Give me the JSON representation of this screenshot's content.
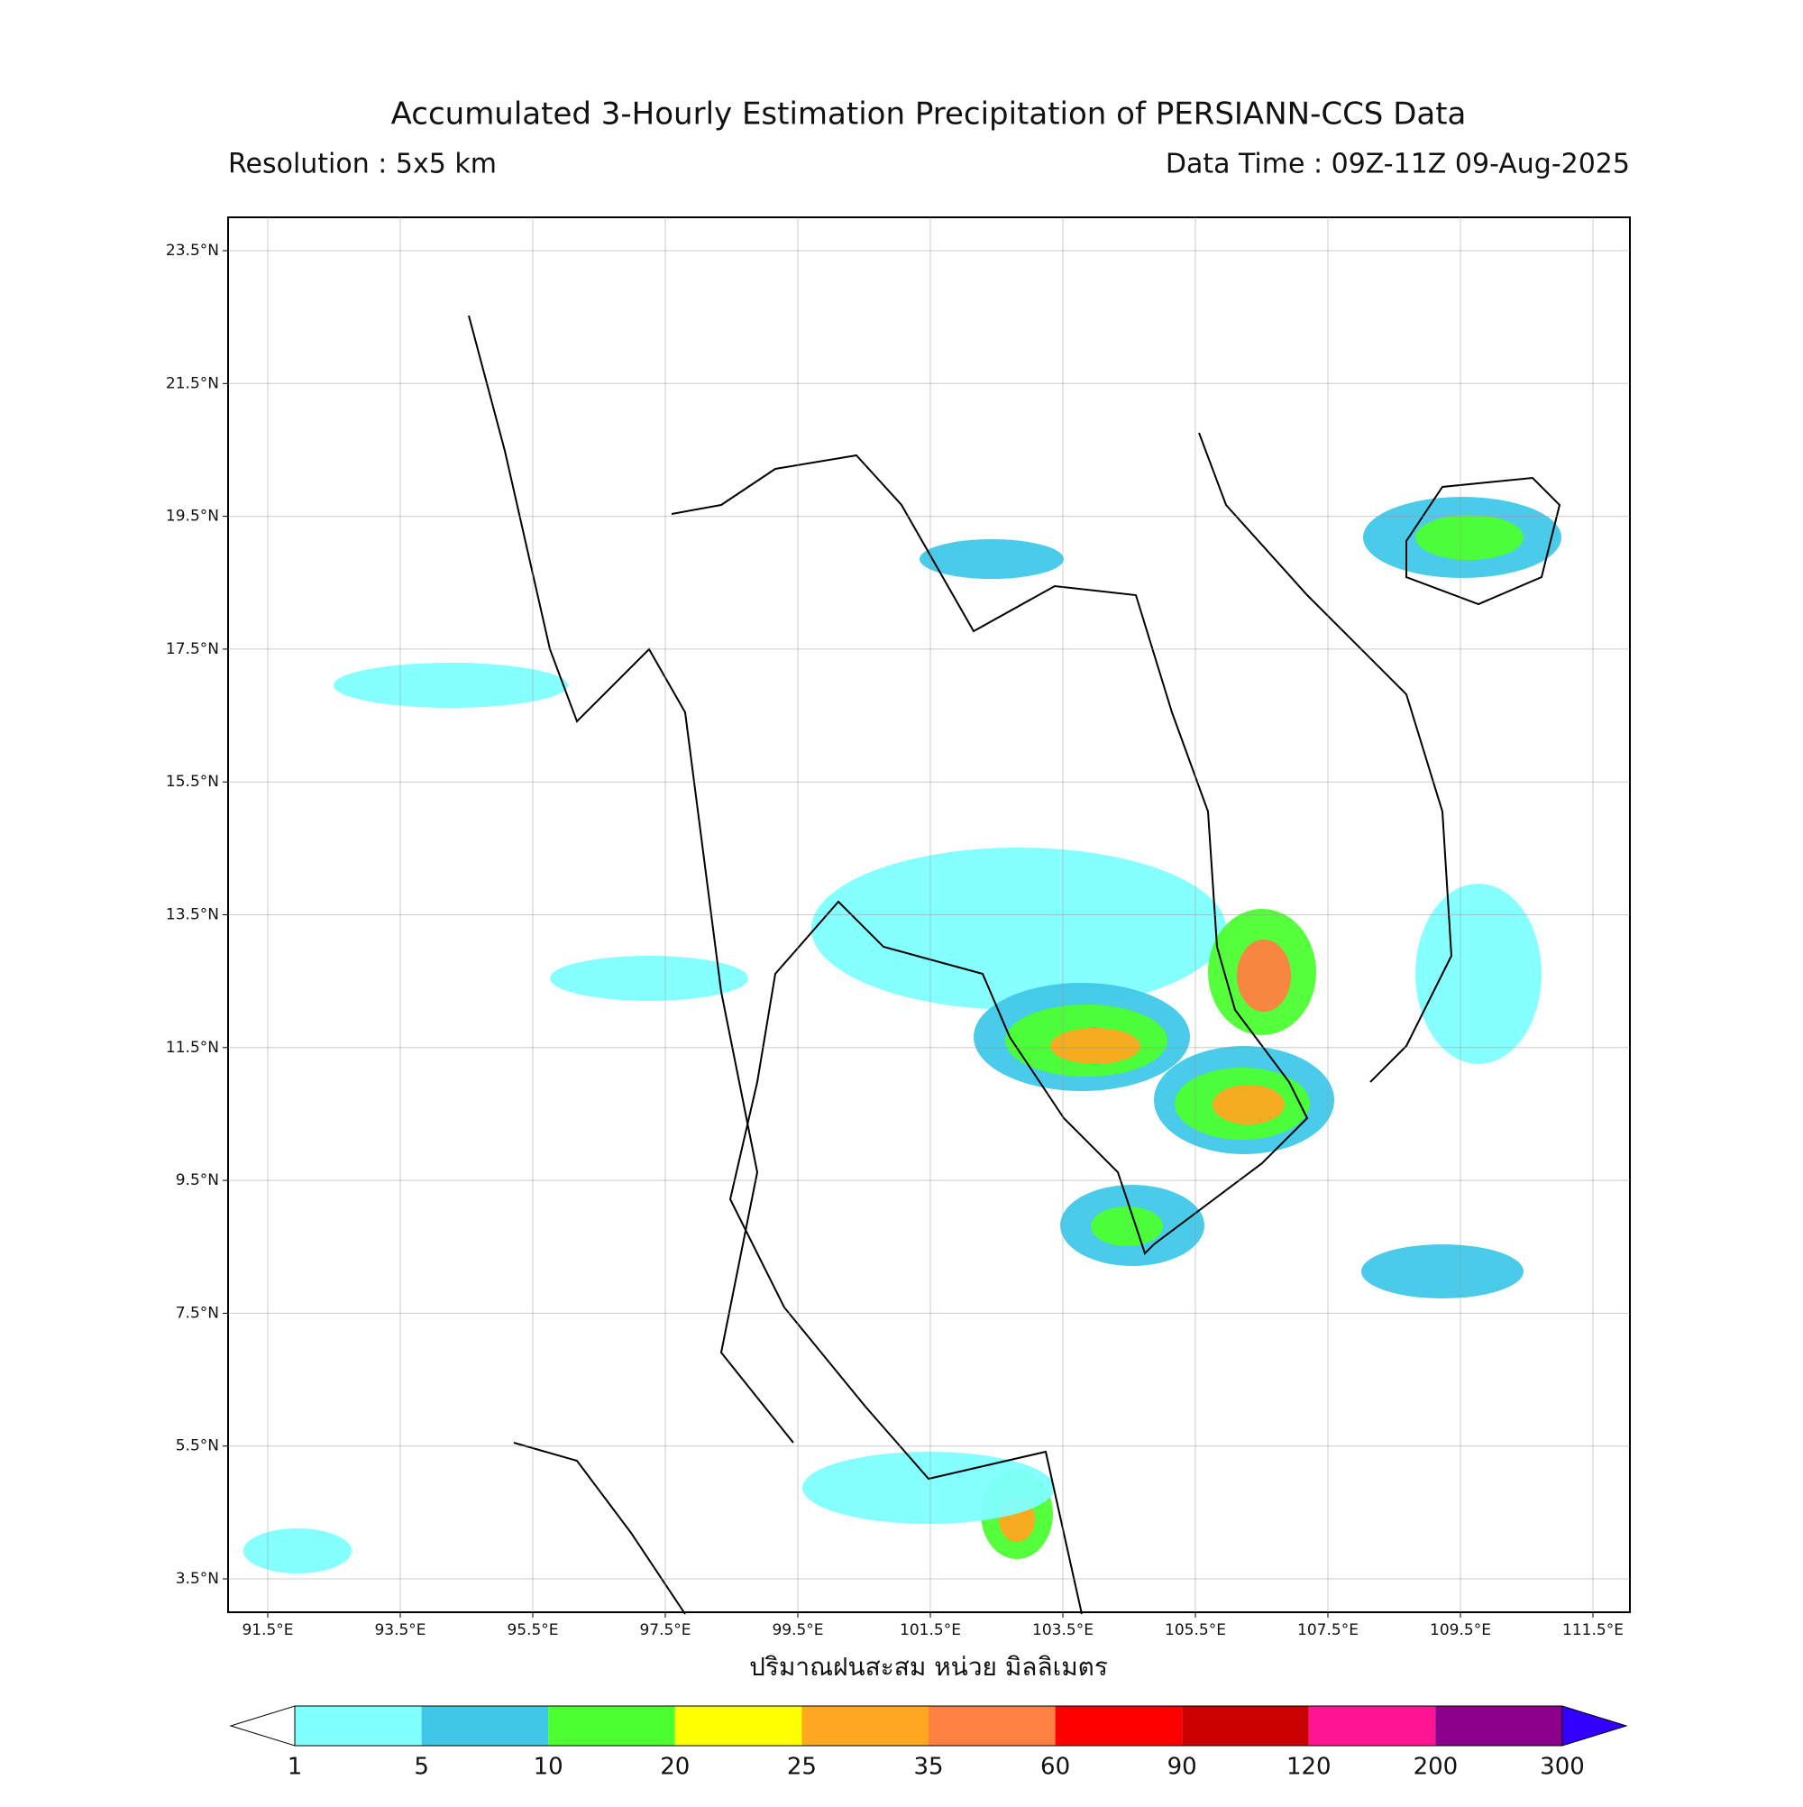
{
  "header": {
    "title": "Accumulated 3-Hourly Estimation Precipitation of PERSIANN-CCS Data",
    "resolution": "Resolution : 5x5 km",
    "data_time": "Data Time : 09Z-11Z 09-Aug-2025"
  },
  "map": {
    "lon_labels": [
      "91.5°E",
      "93.5°E",
      "95.5°E",
      "97.5°E",
      "99.5°E",
      "101.5°E",
      "103.5°E",
      "105.5°E",
      "107.5°E",
      "109.5°E",
      "111.5°E"
    ],
    "lat_labels": [
      "23.5°N",
      "21.5°N",
      "19.5°N",
      "17.5°N",
      "15.5°N",
      "13.5°N",
      "11.5°N",
      "9.5°N",
      "7.5°N",
      "5.5°N",
      "3.5°N"
    ],
    "xlabel": "ปริมาณฝนสะสม หน่วย มิลลิเมตร"
  },
  "colorbar": {
    "levels": [
      1,
      5,
      10,
      20,
      25,
      35,
      60,
      90,
      120,
      200,
      300
    ],
    "colors": [
      "#80ffff",
      "#40c8e8",
      "#4cff30",
      "#ffff00",
      "#ffa820",
      "#ff8040",
      "#ff0000",
      "#c80000",
      "#ff1493",
      "#8b008b"
    ],
    "under_color": "#ffffff",
    "over_color": "#3300ff"
  }
}
